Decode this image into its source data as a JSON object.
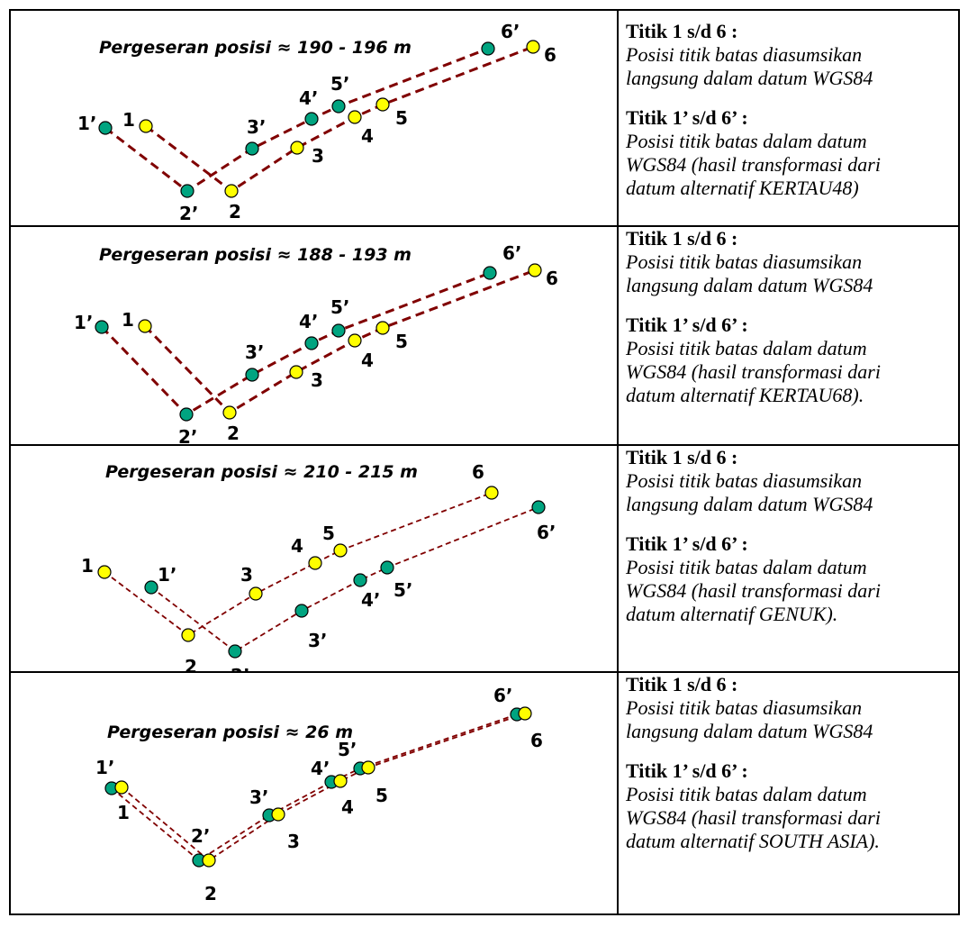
{
  "panels": [
    {
      "caption": "Pergeseran posisi ≈ 190 - 196 m",
      "group_a_heading": "Titik 1 s/d 6 :",
      "group_a_lines": [
        "Posisi titik batas diasumsikan",
        "langsung dalam datum WGS84"
      ],
      "group_b_heading": "Titik 1’ s/d 6’ :",
      "group_b_lines": [
        "Posisi titik batas dalam datum",
        "WGS84 (hasil transformasi dari",
        "datum alternatif KERTAU48)"
      ]
    },
    {
      "caption": "Pergeseran posisi ≈ 188 - 193 m",
      "group_a_heading": "Titik 1 s/d 6 :",
      "group_a_lines": [
        "Posisi titik batas diasumsikan",
        "langsung dalam datum WGS84"
      ],
      "group_b_heading": "Titik 1’ s/d 6’ :",
      "group_b_lines": [
        "Posisi titik batas dalam datum",
        "WGS84 (hasil transformasi dari",
        "datum alternatif KERTAU68)."
      ]
    },
    {
      "caption": "Pergeseran posisi ≈ 210 - 215 m",
      "group_a_heading": "Titik 1 s/d 6 :",
      "group_a_lines": [
        "Posisi titik batas diasumsikan",
        "langsung dalam datum WGS84"
      ],
      "group_b_heading": "Titik 1’ s/d 6’ :",
      "group_b_lines": [
        "Posisi titik batas dalam datum",
        "WGS84 (hasil transformasi dari",
        "datum alternatif GENUK)."
      ]
    },
    {
      "caption": "Pergeseran posisi ≈ 26 m",
      "group_a_heading": "Titik 1 s/d 6 :",
      "group_a_lines": [
        "Posisi titik batas diasumsikan",
        "langsung dalam datum WGS84"
      ],
      "group_b_heading": "Titik 1’ s/d 6’ :",
      "group_b_lines": [
        "Posisi titik batas dalam datum",
        "WGS84 (hasil transformasi dari",
        "datum alternatif SOUTH ASIA)."
      ]
    }
  ],
  "point_labels": {
    "wgs84": [
      "1",
      "2",
      "3",
      "4",
      "5",
      "6"
    ],
    "transformed": [
      "1’",
      "2’",
      "3’",
      "4’",
      "5’",
      "6’"
    ]
  },
  "colors": {
    "wgs84_point": "#ffff00",
    "transformed_point": "#00a480",
    "line": "#800000"
  }
}
